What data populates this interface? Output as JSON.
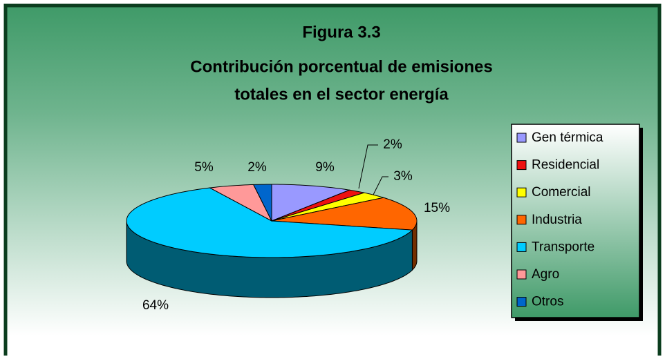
{
  "chart_data": {
    "type": "pie",
    "title": [
      "Figura 3.3",
      "Contribución porcentual de emisiones",
      "totales en el sector energía"
    ],
    "categories": [
      "Gen térmica",
      "Residencial",
      "Comercial",
      "Industria",
      "Transporte",
      "Agro",
      "Otros"
    ],
    "values": [
      9,
      2,
      3,
      15,
      64,
      5,
      2
    ],
    "value_labels": [
      "9%",
      "2%",
      "3%",
      "15%",
      "64%",
      "5%",
      "2%"
    ],
    "colors": [
      "#9999ff",
      "#ee1111",
      "#ffff00",
      "#ff6600",
      "#00ccff",
      "#ff9999",
      "#0066cc"
    ],
    "legend": "right"
  }
}
